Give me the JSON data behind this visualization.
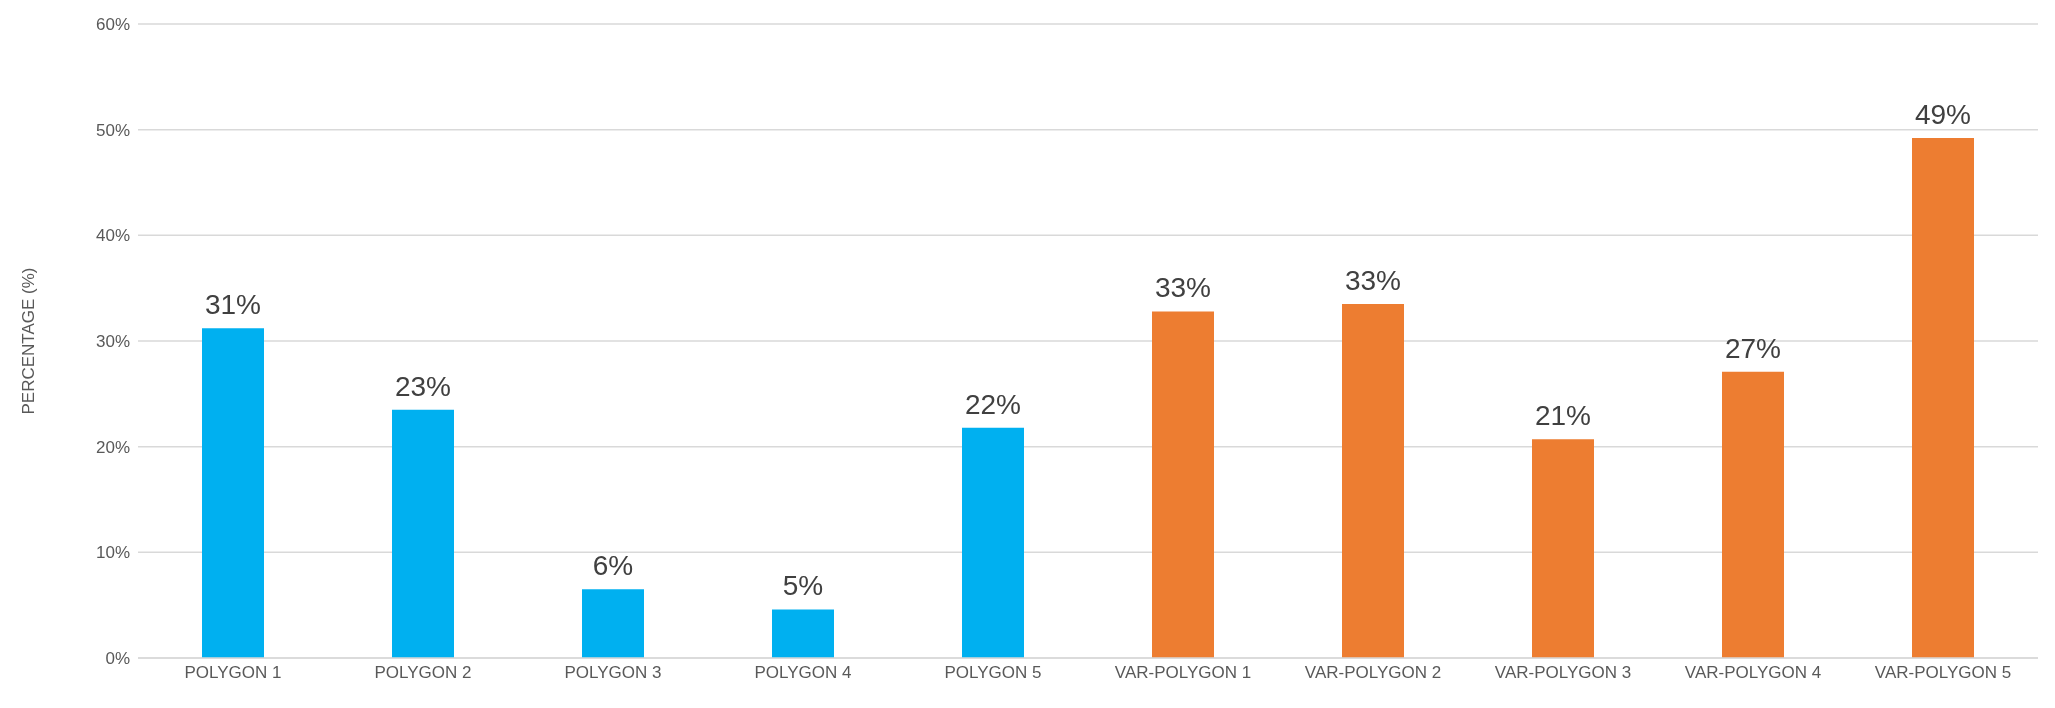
{
  "chart_data": {
    "type": "bar",
    "ylabel": "PERCENTAGE (%)",
    "categories": [
      "POLYGON 1",
      "POLYGON 2",
      "POLYGON 3",
      "POLYGON 4",
      "POLYGON 5",
      "VAR-POLYGON 1",
      "VAR-POLYGON 2",
      "VAR-POLYGON 3",
      "VAR-POLYGON 4",
      "VAR-POLYGON 5"
    ],
    "values": [
      31.2,
      23.5,
      6.5,
      4.6,
      21.8,
      32.8,
      33.5,
      20.7,
      27.1,
      49.2
    ],
    "colors": [
      "#00b0f0",
      "#00b0f0",
      "#00b0f0",
      "#00b0f0",
      "#00b0f0",
      "#ed7d31",
      "#ed7d31",
      "#ed7d31",
      "#ed7d31",
      "#ed7d31"
    ],
    "value_labels": [
      "31%",
      "23%",
      "6%",
      "5%",
      "22%",
      "33%",
      "33%",
      "21%",
      "27%",
      "49%"
    ],
    "ylim": [
      0,
      60
    ],
    "yticks": [
      {
        "value": 0,
        "label": "0%"
      },
      {
        "value": 10,
        "label": "10%"
      },
      {
        "value": 20,
        "label": "20%"
      },
      {
        "value": 30,
        "label": "30%"
      },
      {
        "value": 40,
        "label": "40%"
      },
      {
        "value": 50,
        "label": "50%"
      },
      {
        "value": 60,
        "label": "60%"
      }
    ],
    "grid": "y"
  }
}
